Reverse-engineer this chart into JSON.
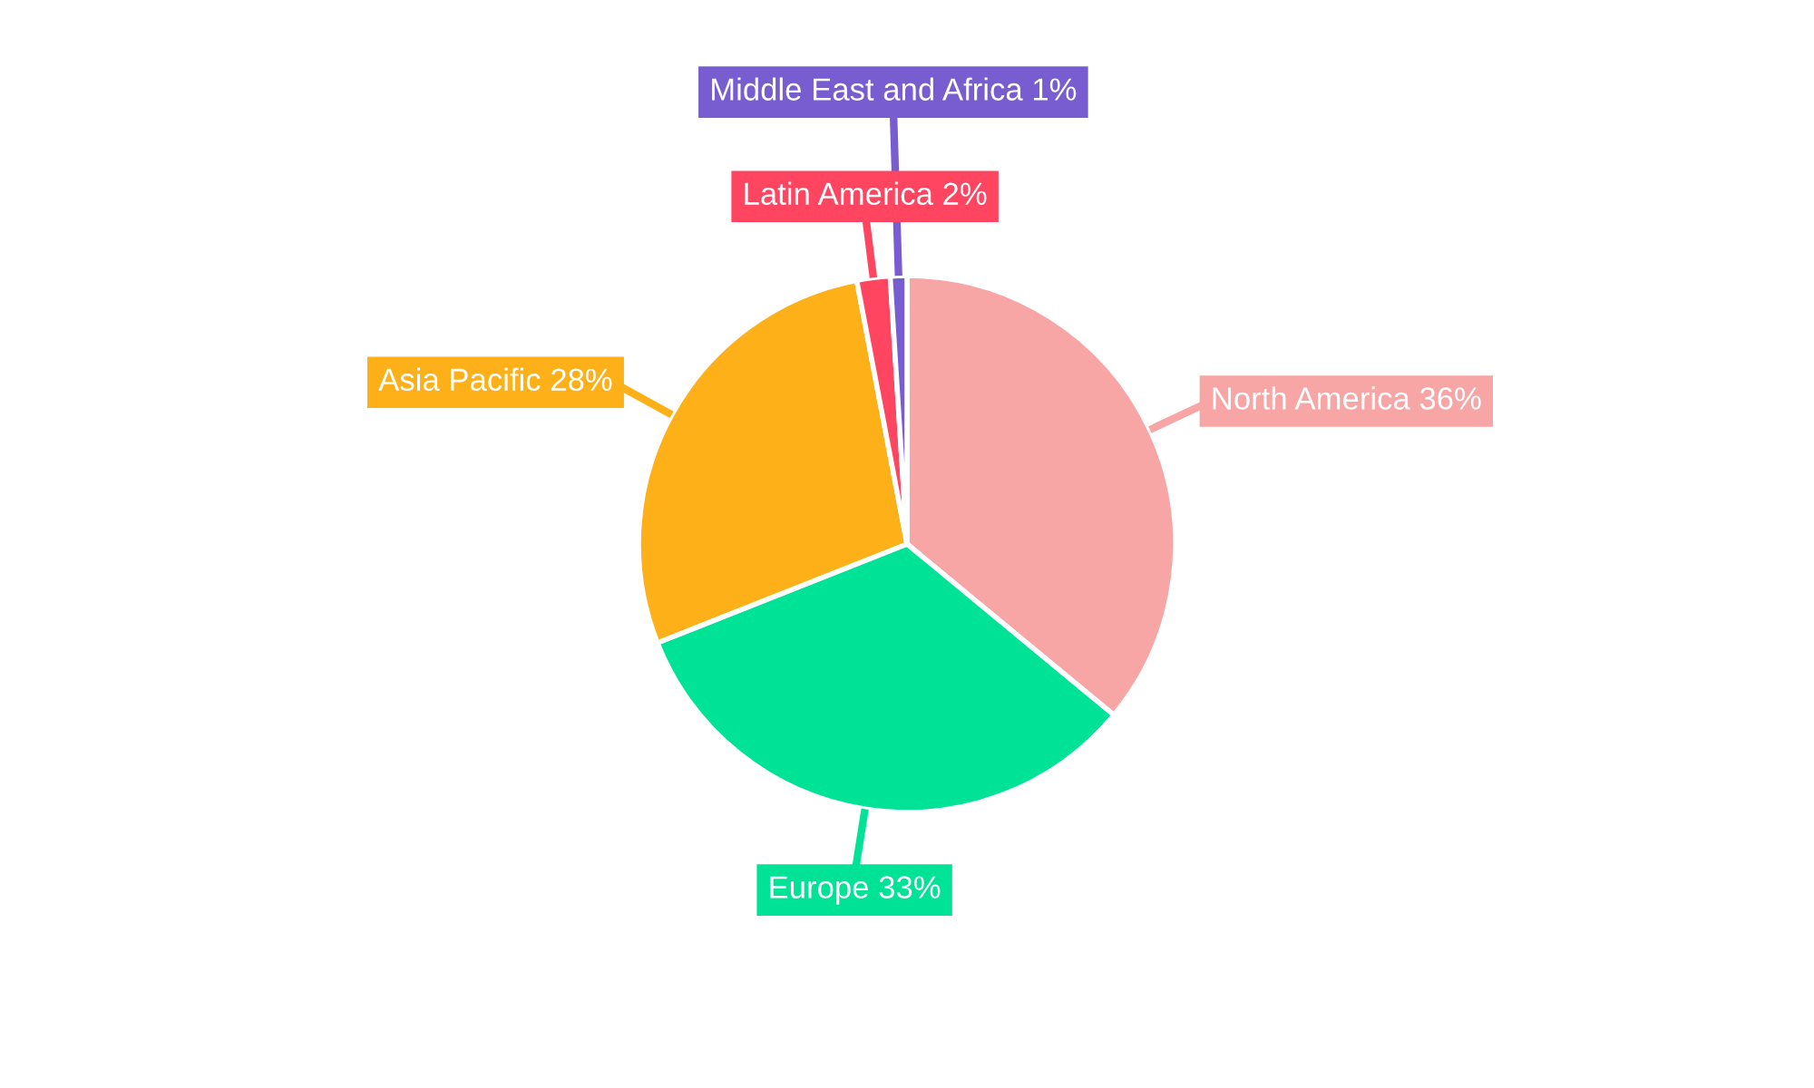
{
  "chart_data": {
    "type": "pie",
    "categories": [
      "North America",
      "Europe",
      "Asia Pacific",
      "Latin America",
      "Middle East and Africa"
    ],
    "values": [
      36,
      33,
      28,
      2,
      1
    ],
    "value_labels": [
      "36%",
      "33%",
      "28%",
      "2%",
      "1%"
    ],
    "colors": [
      "#f8a5a5",
      "#00e396",
      "#feb019",
      "#ff4560",
      "#775dd0"
    ]
  }
}
